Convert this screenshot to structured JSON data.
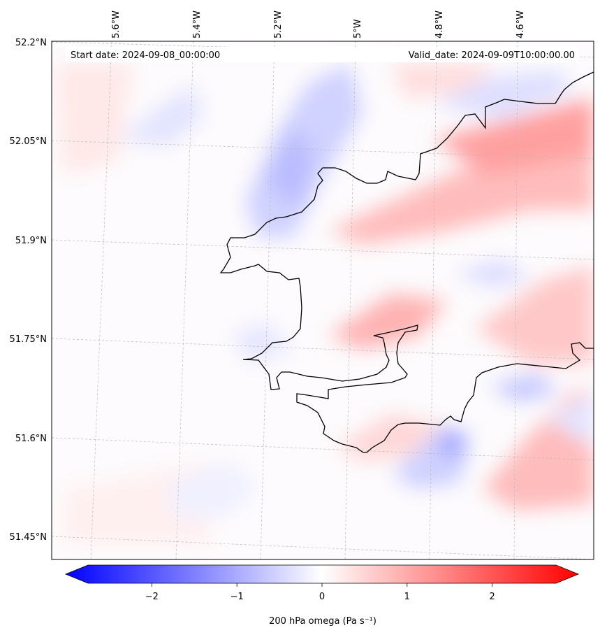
{
  "map": {
    "start_date": "Start date: 2024-09-08_00:00:00",
    "valid_date": "Valid_date: 2024-09-09T10:00:00.00",
    "lon_labels": [
      "5.6°W",
      "5.4°W",
      "5.2°W",
      "5°W",
      "4.8°W",
      "4.6°W"
    ],
    "lat_labels": [
      "52.2°N",
      "52.05°N",
      "51.9°N",
      "51.75°N",
      "51.6°N",
      "51.45°N"
    ]
  },
  "colorbar": {
    "ticks": [
      "−2",
      "−1",
      "0",
      "1",
      "2"
    ],
    "tick_values": [
      -2,
      -1,
      0,
      1,
      2
    ],
    "range": [
      -2.75,
      2.75
    ],
    "label": "200 hPa omega (Pa s⁻¹)",
    "colors": {
      "low": "#0000ff",
      "mid": "#ffffff",
      "high": "#ff0000"
    }
  }
}
